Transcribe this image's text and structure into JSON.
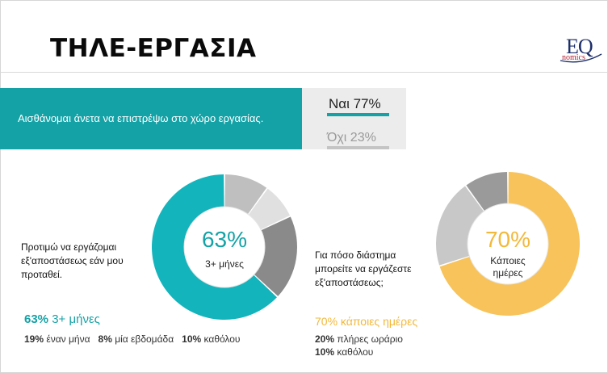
{
  "slide": {
    "title": "ΤΗΛΕ-ΕΡΓΑΣΙΑ",
    "logo": {
      "top": "EQ",
      "bottom": "nomics"
    }
  },
  "survey": {
    "statement": "Αισθάνομαι άνετα να επιστρέψω στο χώρο εργασίας.",
    "yes": "Ναι 77%",
    "no": "Όχι 23%",
    "yes_color": "#14a2a6",
    "no_color": "#c4c4c4"
  },
  "left_chart": {
    "question": "Προτιμώ να εργάζομαι εξ'αποστάσεως εάν μου προταθεί.",
    "center_pct": "63%",
    "center_label": "3+ μήνες",
    "summary_pct": "63%",
    "summary_label": " 3+ μήνες",
    "details": [
      {
        "pct": "19%",
        "label": " έναν μήνα"
      },
      {
        "pct": "8%",
        "label": " μία εβδομάδα"
      },
      {
        "pct": "10%",
        "label": " καθόλου"
      }
    ]
  },
  "right_chart": {
    "question": "Για πόσο διάστημα μπορείτε να εργάζεστε εξ'αποστάσεως;",
    "center_pct": "70%",
    "center_label_1": "Κάποιες",
    "center_label_2": "ημέρες",
    "summary": "70% κάποιες ημέρες",
    "details": [
      {
        "pct": "20%",
        "label": " πλήρες ωράριο"
      },
      {
        "pct": "10%",
        "label": " καθόλου"
      }
    ]
  },
  "chart_data": [
    {
      "type": "pie",
      "title": "",
      "categories": [
        "3+ μήνες",
        "",
        "",
        ""
      ],
      "values": [
        63,
        10,
        8,
        19
      ],
      "colors": [
        "#14b4bc",
        "#bfbfbf",
        "#e0e0e0",
        "#8a8a8a"
      ]
    },
    {
      "type": "pie",
      "title": "",
      "categories": [
        "κάποιες ημέρες",
        "πλήρες ωράριο",
        "καθόλου"
      ],
      "values": [
        70,
        20,
        10
      ],
      "colors": [
        "#f7c35a",
        "#c8c8c8",
        "#9a9a9a"
      ]
    }
  ]
}
